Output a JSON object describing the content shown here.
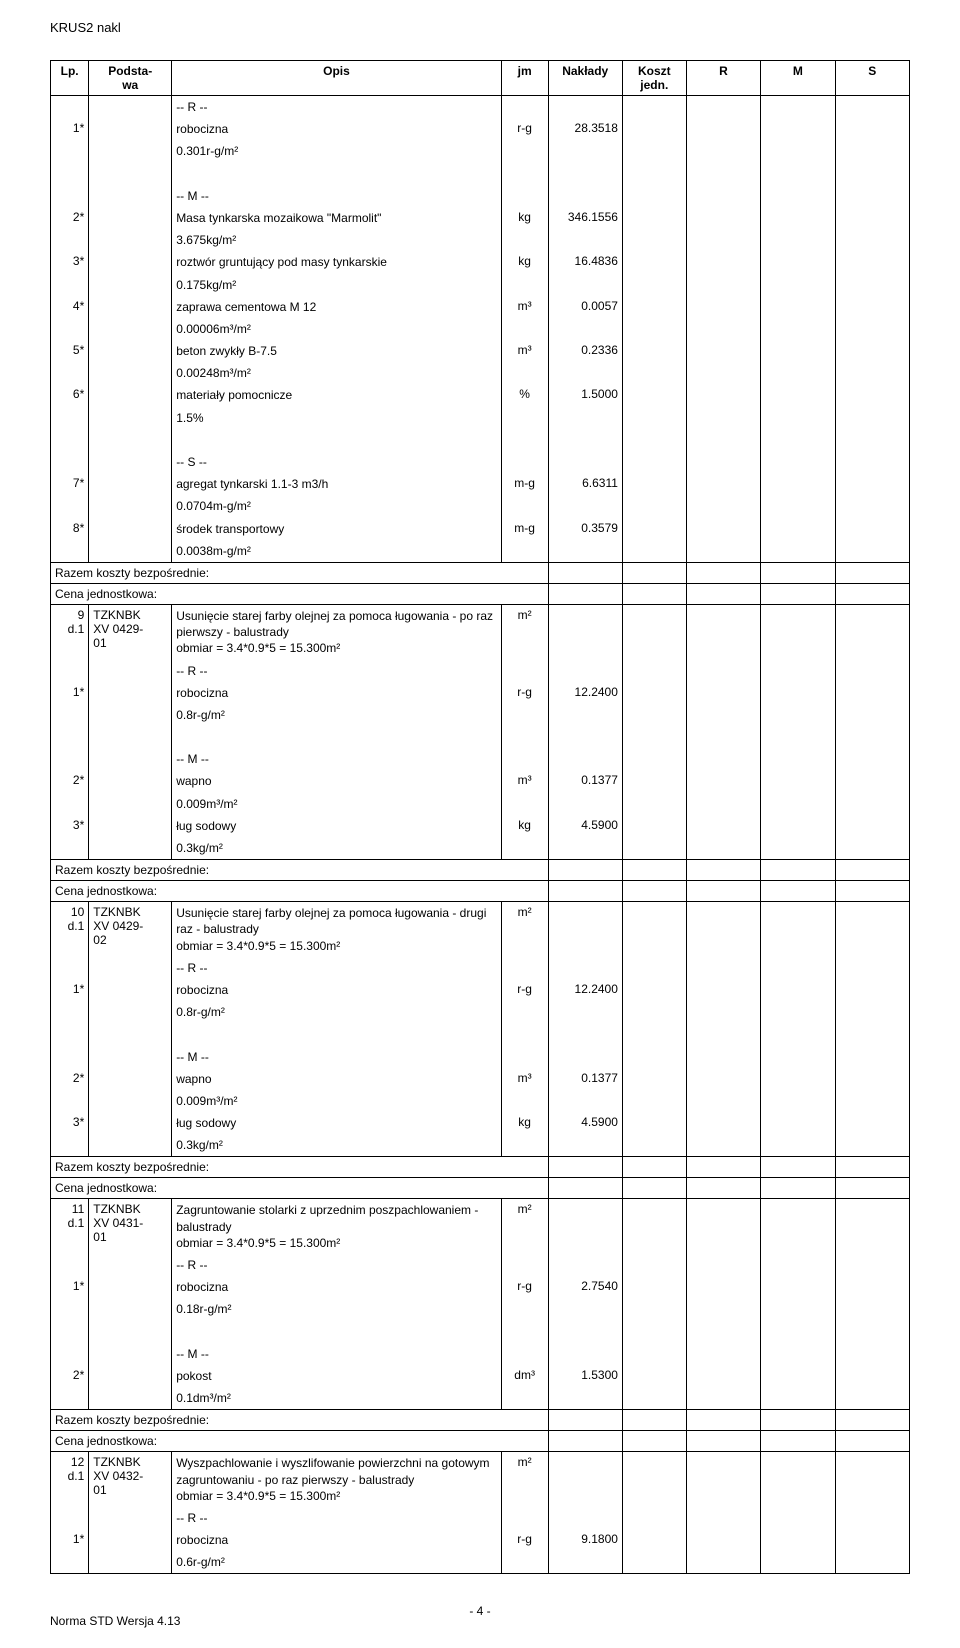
{
  "header": "KRUS2 nakl",
  "columns": {
    "lp": "Lp.",
    "podstawa": "Podsta-\nwa",
    "opis": "Opis",
    "jm": "jm",
    "naklady": "Nakłady",
    "koszt": "Koszt\njedn.",
    "r": "R",
    "m": "M",
    "s": "S"
  },
  "block1": {
    "lines": [
      {
        "lp": "",
        "opis": "-- R --",
        "jm": "",
        "val": ""
      },
      {
        "lp": "1*",
        "opis": "robocizna",
        "jm": "r-g",
        "val": "28.3518"
      },
      {
        "lp": "",
        "opis": "0.301r-g/m²",
        "jm": "",
        "val": ""
      },
      {
        "lp": "",
        "opis": "",
        "jm": "",
        "val": ""
      },
      {
        "lp": "",
        "opis": "-- M --",
        "jm": "",
        "val": ""
      },
      {
        "lp": "2*",
        "opis": "Masa tynkarska mozaikowa \"Marmolit\"",
        "jm": "kg",
        "val": "346.1556"
      },
      {
        "lp": "",
        "opis": "3.675kg/m²",
        "jm": "",
        "val": ""
      },
      {
        "lp": "3*",
        "opis": "roztwór gruntujący pod masy tynkarskie",
        "jm": "kg",
        "val": "16.4836"
      },
      {
        "lp": "",
        "opis": "0.175kg/m²",
        "jm": "",
        "val": ""
      },
      {
        "lp": "4*",
        "opis": "zaprawa cementowa M 12",
        "jm": "m³",
        "val": "0.0057"
      },
      {
        "lp": "",
        "opis": "0.00006m³/m²",
        "jm": "",
        "val": ""
      },
      {
        "lp": "5*",
        "opis": "beton zwykły B-7.5",
        "jm": "m³",
        "val": "0.2336"
      },
      {
        "lp": "",
        "opis": "0.00248m³/m²",
        "jm": "",
        "val": ""
      },
      {
        "lp": "6*",
        "opis": "materiały pomocnicze",
        "jm": "%",
        "val": "1.5000"
      },
      {
        "lp": "",
        "opis": "1.5%",
        "jm": "",
        "val": ""
      },
      {
        "lp": "",
        "opis": "",
        "jm": "",
        "val": ""
      },
      {
        "lp": "",
        "opis": "-- S --",
        "jm": "",
        "val": ""
      },
      {
        "lp": "7*",
        "opis": "agregat tynkarski 1.1-3 m3/h",
        "jm": "m-g",
        "val": "6.6311"
      },
      {
        "lp": "",
        "opis": "0.0704m-g/m²",
        "jm": "",
        "val": ""
      },
      {
        "lp": "8*",
        "opis": "środek transportowy",
        "jm": "m-g",
        "val": "0.3579"
      },
      {
        "lp": "",
        "opis": "0.0038m-g/m²",
        "jm": "",
        "val": ""
      }
    ]
  },
  "razem": "Razem koszty bezpośrednie:",
  "cena": "Cena jednostkowa:",
  "row9": {
    "lp": "9\nd.1",
    "pod": "TZKNBK\nXV 0429-\n01",
    "opis": "Usunięcie starej farby olejnej za pomoca ługowania - po raz pierwszy - balustrady\nobmiar = 3.4*0.9*5 = 15.300m²",
    "jm": "m²"
  },
  "block2": {
    "lines": [
      {
        "lp": "",
        "opis": "-- R --",
        "jm": "",
        "val": ""
      },
      {
        "lp": "1*",
        "opis": "robocizna",
        "jm": "r-g",
        "val": "12.2400"
      },
      {
        "lp": "",
        "opis": "0.8r-g/m²",
        "jm": "",
        "val": ""
      },
      {
        "lp": "",
        "opis": "",
        "jm": "",
        "val": ""
      },
      {
        "lp": "",
        "opis": "-- M --",
        "jm": "",
        "val": ""
      },
      {
        "lp": "2*",
        "opis": "wapno",
        "jm": "m³",
        "val": "0.1377"
      },
      {
        "lp": "",
        "opis": "0.009m³/m²",
        "jm": "",
        "val": ""
      },
      {
        "lp": "3*",
        "opis": "ług sodowy",
        "jm": "kg",
        "val": "4.5900"
      },
      {
        "lp": "",
        "opis": "0.3kg/m²",
        "jm": "",
        "val": ""
      }
    ]
  },
  "row10": {
    "lp": "10\nd.1",
    "pod": "TZKNBK\nXV 0429-\n02",
    "opis": "Usunięcie starej farby olejnej za pomoca ługowania - drugi raz  - balustrady\nobmiar = 3.4*0.9*5 = 15.300m²",
    "jm": "m²"
  },
  "block3": {
    "lines": [
      {
        "lp": "",
        "opis": "-- R --",
        "jm": "",
        "val": ""
      },
      {
        "lp": "1*",
        "opis": "robocizna",
        "jm": "r-g",
        "val": "12.2400"
      },
      {
        "lp": "",
        "opis": "0.8r-g/m²",
        "jm": "",
        "val": ""
      },
      {
        "lp": "",
        "opis": "",
        "jm": "",
        "val": ""
      },
      {
        "lp": "",
        "opis": "-- M --",
        "jm": "",
        "val": ""
      },
      {
        "lp": "2*",
        "opis": "wapno",
        "jm": "m³",
        "val": "0.1377"
      },
      {
        "lp": "",
        "opis": "0.009m³/m²",
        "jm": "",
        "val": ""
      },
      {
        "lp": "3*",
        "opis": "ług sodowy",
        "jm": "kg",
        "val": "4.5900"
      },
      {
        "lp": "",
        "opis": "0.3kg/m²",
        "jm": "",
        "val": ""
      }
    ]
  },
  "row11": {
    "lp": "11\nd.1",
    "pod": "TZKNBK\nXV 0431-\n01",
    "opis": "Zagruntowanie stolarki z uprzednim poszpachlowaniem - balustrady\nobmiar = 3.4*0.9*5 = 15.300m²",
    "jm": "m²"
  },
  "block4": {
    "lines": [
      {
        "lp": "",
        "opis": "-- R --",
        "jm": "",
        "val": ""
      },
      {
        "lp": "1*",
        "opis": "robocizna",
        "jm": "r-g",
        "val": "2.7540"
      },
      {
        "lp": "",
        "opis": "0.18r-g/m²",
        "jm": "",
        "val": ""
      },
      {
        "lp": "",
        "opis": "",
        "jm": "",
        "val": ""
      },
      {
        "lp": "",
        "opis": "-- M --",
        "jm": "",
        "val": ""
      },
      {
        "lp": "2*",
        "opis": "pokost",
        "jm": "dm³",
        "val": "1.5300"
      },
      {
        "lp": "",
        "opis": "0.1dm³/m²",
        "jm": "",
        "val": ""
      }
    ]
  },
  "row12": {
    "lp": "12\nd.1",
    "pod": "TZKNBK\nXV 0432-\n01",
    "opis": "Wyszpachlowanie i wyszlifowanie powierzchni na gotowym zagruntowaniu - po raz pierwszy - balustrady\nobmiar = 3.4*0.9*5 = 15.300m²",
    "jm": "m²"
  },
  "block5": {
    "lines": [
      {
        "lp": "",
        "opis": "-- R --",
        "jm": "",
        "val": ""
      },
      {
        "lp": "1*",
        "opis": "robocizna",
        "jm": "r-g",
        "val": "9.1800"
      },
      {
        "lp": "",
        "opis": "0.6r-g/m²",
        "jm": "",
        "val": ""
      }
    ]
  },
  "pageNum": "- 4 -",
  "norma": "Norma STD Wersja 4.13"
}
